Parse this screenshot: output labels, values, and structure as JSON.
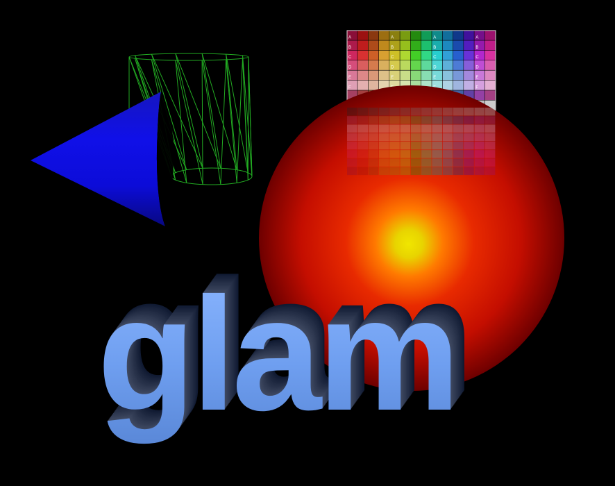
{
  "scene": {
    "background_color": "#000000",
    "objects": [
      {
        "name": "blue-cone",
        "color": "#1111dd",
        "shape": "cone"
      },
      {
        "name": "green-wireframe-cylinder",
        "color": "#22aa22",
        "shape": "cylinder"
      },
      {
        "name": "color-chart-texture",
        "shape": "plane",
        "reflected": true
      },
      {
        "name": "red-glowing-sphere",
        "colors": [
          "#f0e400",
          "#ff6000",
          "#d40e00",
          "#700000"
        ],
        "shape": "sphere"
      },
      {
        "name": "glam-3d-text",
        "color": "#6f9ff0",
        "shape": "extruded-text"
      }
    ],
    "text": {
      "word": "glam"
    },
    "color_chart": {
      "row_letters": [
        "A",
        "B",
        "C",
        "D",
        "E",
        "F"
      ]
    }
  }
}
